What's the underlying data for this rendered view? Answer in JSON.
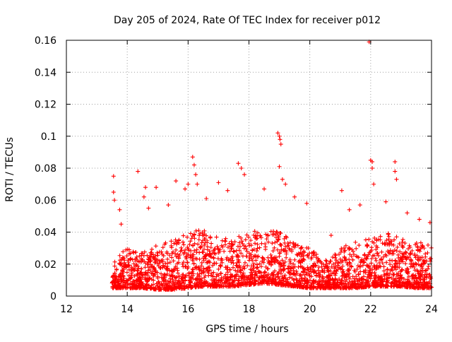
{
  "chart_data": {
    "type": "scatter",
    "title": "Day 205 of 2024, Rate Of TEC Index for receiver p012",
    "xlabel": "GPS time / hours",
    "ylabel": "ROTI / TECUs",
    "xlim": [
      12,
      24
    ],
    "ylim": [
      0,
      0.16
    ],
    "xticks": [
      "12",
      "14",
      "16",
      "18",
      "20",
      "22",
      "24"
    ],
    "yticks": [
      "0",
      "0.02",
      "0.04",
      "0.06",
      "0.08",
      "0.1",
      "0.12",
      "0.14",
      "0.16"
    ],
    "grid": true,
    "marker": "+",
    "series": [
      {
        "name": "ROTI",
        "color": "#ff0000",
        "x": [
          13.55,
          13.55,
          13.58,
          13.75,
          13.8,
          14.35,
          14.55,
          14.6,
          14.7,
          14.95,
          15.35,
          15.6,
          15.9,
          16.0,
          16.15,
          16.2,
          16.25,
          16.3,
          16.6,
          17.0,
          17.3,
          17.65,
          17.75,
          17.85,
          18.5,
          18.95,
          19.0,
          19.02,
          19.05,
          19.0,
          19.1,
          19.2,
          19.5,
          19.9,
          20.7,
          21.05,
          21.3,
          21.65,
          21.95,
          22.0,
          22.05,
          22.05,
          22.1,
          22.5,
          22.8,
          22.8,
          22.85,
          23.2,
          23.6,
          23.95
        ],
        "y": [
          0.075,
          0.065,
          0.06,
          0.054,
          0.045,
          0.078,
          0.062,
          0.068,
          0.055,
          0.068,
          0.057,
          0.072,
          0.067,
          0.07,
          0.087,
          0.082,
          0.076,
          0.07,
          0.061,
          0.071,
          0.066,
          0.083,
          0.08,
          0.076,
          0.067,
          0.102,
          0.1,
          0.098,
          0.095,
          0.081,
          0.073,
          0.07,
          0.062,
          0.058,
          0.038,
          0.066,
          0.054,
          0.057,
          0.159,
          0.085,
          0.084,
          0.08,
          0.07,
          0.059,
          0.084,
          0.078,
          0.073,
          0.052,
          0.048,
          0.046
        ]
      }
    ],
    "density_envelope": {
      "note": "approximate upper envelope of the dense cloud of points",
      "x": [
        13.5,
        14.0,
        14.5,
        15.0,
        15.5,
        16.0,
        16.5,
        17.0,
        17.5,
        18.0,
        18.5,
        19.0,
        19.5,
        20.0,
        20.5,
        21.0,
        21.5,
        22.0,
        22.5,
        23.0,
        23.5,
        24.0
      ],
      "upper": [
        0.022,
        0.03,
        0.028,
        0.032,
        0.035,
        0.04,
        0.042,
        0.038,
        0.036,
        0.04,
        0.042,
        0.04,
        0.034,
        0.03,
        0.022,
        0.03,
        0.034,
        0.036,
        0.04,
        0.036,
        0.034,
        0.034
      ],
      "lower": [
        0.005,
        0.005,
        0.005,
        0.004,
        0.004,
        0.005,
        0.006,
        0.006,
        0.006,
        0.007,
        0.008,
        0.007,
        0.006,
        0.005,
        0.005,
        0.005,
        0.005,
        0.006,
        0.006,
        0.006,
        0.005,
        0.005
      ]
    }
  }
}
